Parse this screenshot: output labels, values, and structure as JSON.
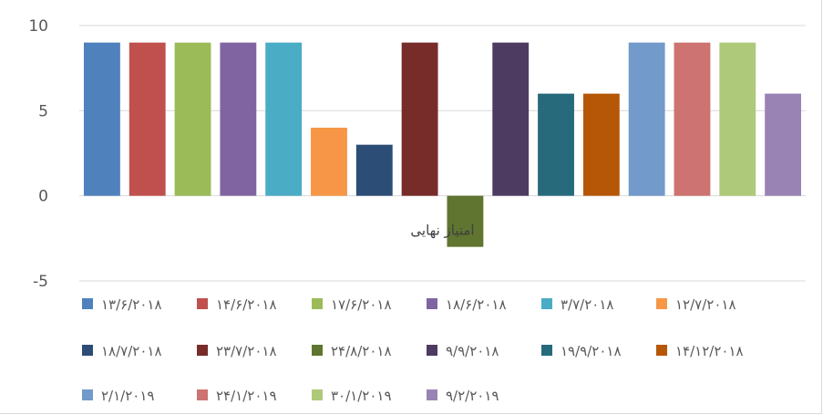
{
  "chart_data": {
    "type": "bar",
    "categories": [
      "امتیاز نهایی"
    ],
    "series": [
      {
        "name": "۱۳/۶/۲۰۱۸",
        "value": 9,
        "color": "#4f81bd"
      },
      {
        "name": "۱۴/۶/۲۰۱۸",
        "value": 9,
        "color": "#c0504d"
      },
      {
        "name": "۱۷/۶/۲۰۱۸",
        "value": 9,
        "color": "#9bbb59"
      },
      {
        "name": "۱۸/۶/۲۰۱۸",
        "value": 9,
        "color": "#8064a2"
      },
      {
        "name": "۳/۷/۲۰۱۸",
        "value": 9,
        "color": "#4bacc6"
      },
      {
        "name": "۱۲/۷/۲۰۱۸",
        "value": 4,
        "color": "#f79646"
      },
      {
        "name": "۱۸/۷/۲۰۱۸",
        "value": 3,
        "color": "#2c4d75"
      },
      {
        "name": "۲۳/۷/۲۰۱۸",
        "value": 9,
        "color": "#772c2a"
      },
      {
        "name": "۲۴/۸/۲۰۱۸",
        "value": -3,
        "color": "#5f7530"
      },
      {
        "name": "۹/۹/۲۰۱۸",
        "value": 9,
        "color": "#4d3b62"
      },
      {
        "name": "۱۹/۹/۲۰۱۸",
        "value": 6,
        "color": "#276a7c"
      },
      {
        "name": "۱۴/۱۲/۲۰۱۸",
        "value": 6,
        "color": "#b65708"
      },
      {
        "name": "۲/۱/۲۰۱۹",
        "value": 9,
        "color": "#729aca"
      },
      {
        "name": "۲۴/۱/۲۰۱۹",
        "value": 9,
        "color": "#cd7371"
      },
      {
        "name": "۳۰/۱/۲۰۱۹",
        "value": 9,
        "color": "#afc97a"
      },
      {
        "name": "۹/۲/۲۰۱۹",
        "value": 6,
        "color": "#9983b5"
      }
    ],
    "y_ticks": [
      "10",
      "5",
      "0",
      "-5"
    ],
    "ylim": [
      -5,
      10
    ],
    "grid": true,
    "legend_position": "bottom",
    "gridline_color": "#d9d9d9"
  }
}
